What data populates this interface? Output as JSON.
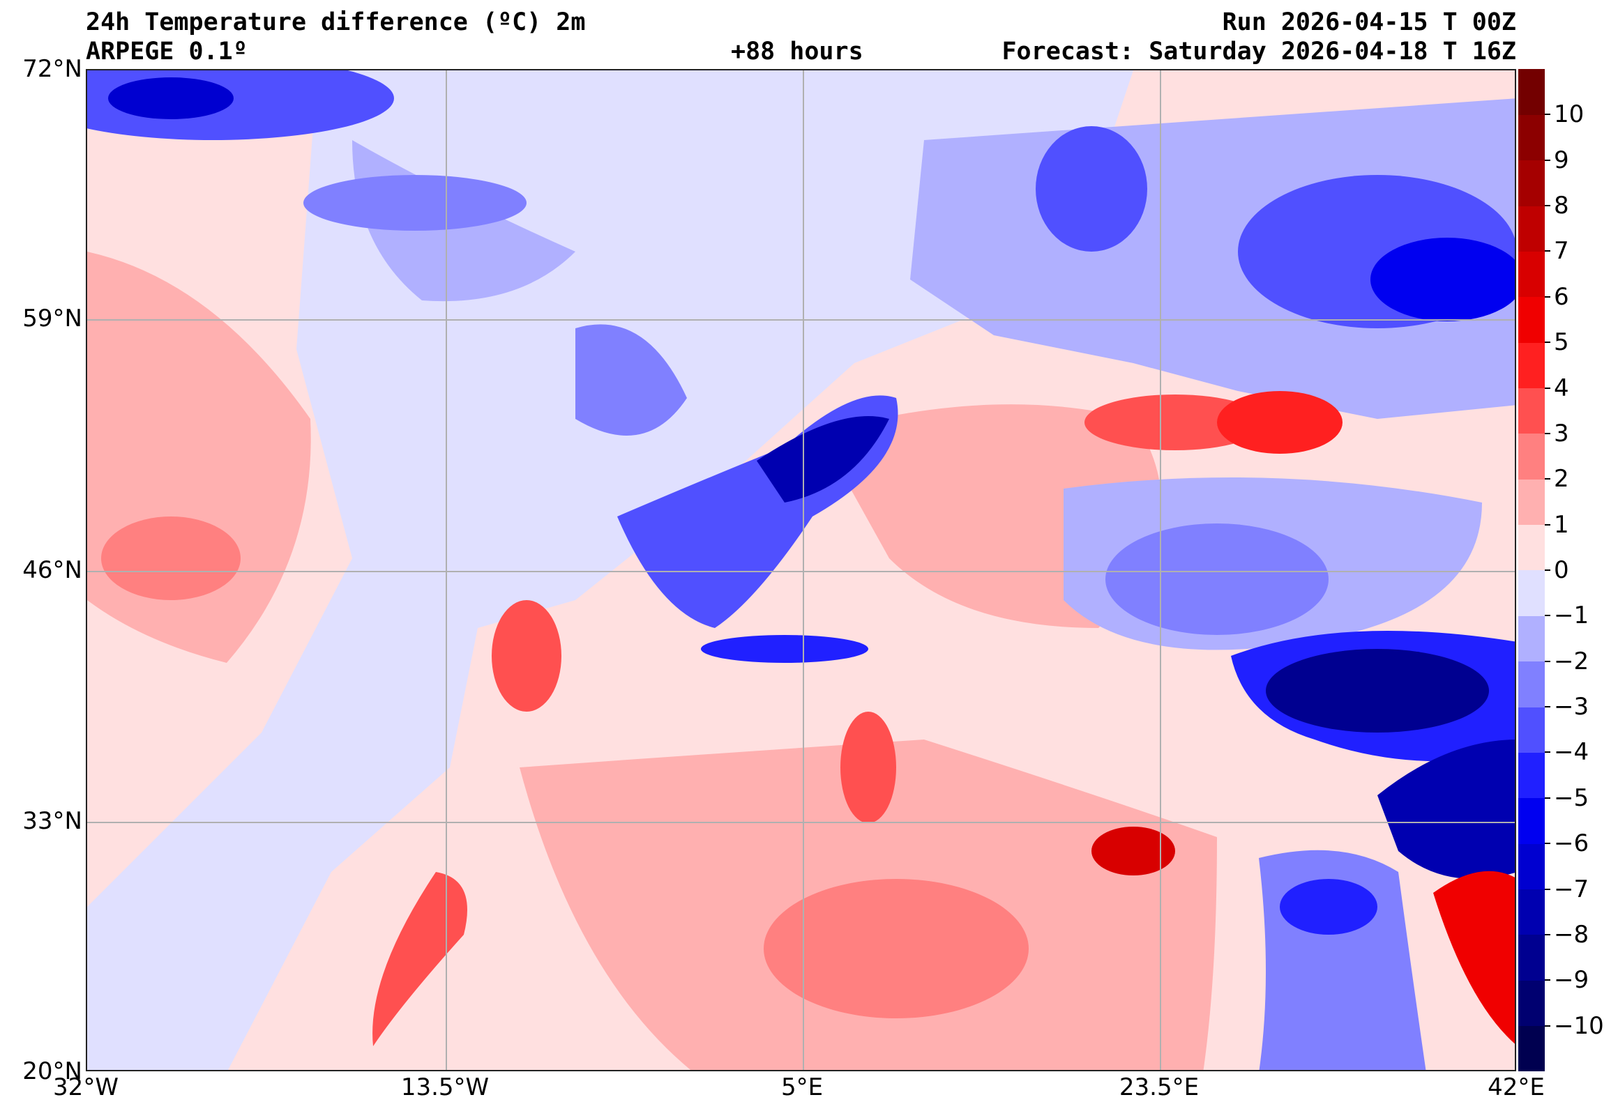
{
  "header": {
    "title": "24h Temperature difference (ºC) 2m",
    "model": "ARPEGE 0.1º",
    "lead": "+88 hours",
    "run": "Run 2026-04-15 T 00Z",
    "forecast": "Forecast: Saturday 2026-04-18 T 16Z"
  },
  "chart_data": {
    "type": "heatmap",
    "title": "24h Temperature difference (ºC) 2m",
    "lat_ticks": [
      "72°N",
      "59°N",
      "46°N",
      "33°N",
      "20°N"
    ],
    "lon_ticks": [
      "32°W",
      "13.5°W",
      "5°E",
      "23.5°E",
      "42°E"
    ],
    "lat_range": [
      20,
      72
    ],
    "lon_range": [
      -32,
      42
    ],
    "grid": true,
    "colorbar": {
      "levels": [
        -11,
        -10,
        -9,
        -8,
        -7,
        -6,
        -5,
        -4,
        -3,
        -2,
        -1,
        0,
        1,
        2,
        3,
        4,
        5,
        6,
        7,
        8,
        9,
        10,
        11
      ],
      "tick_labels": [
        "10",
        "9",
        "8",
        "7",
        "6",
        "5",
        "4",
        "3",
        "2",
        "1",
        "0",
        "−1",
        "−2",
        "−3",
        "−4",
        "−5",
        "−6",
        "−7",
        "−8",
        "−9",
        "−10"
      ],
      "colors": [
        "#000050",
        "#000070",
        "#000090",
        "#0000b0",
        "#0000d0",
        "#0000f0",
        "#2020ff",
        "#5050ff",
        "#8080ff",
        "#b0b0ff",
        "#e0e0ff",
        "#ffe0e0",
        "#ffb0b0",
        "#ff8080",
        "#ff5050",
        "#ff2020",
        "#f00000",
        "#d80000",
        "#bf0000",
        "#a50000",
        "#8c0000",
        "#730000"
      ],
      "placement": "right"
    }
  }
}
